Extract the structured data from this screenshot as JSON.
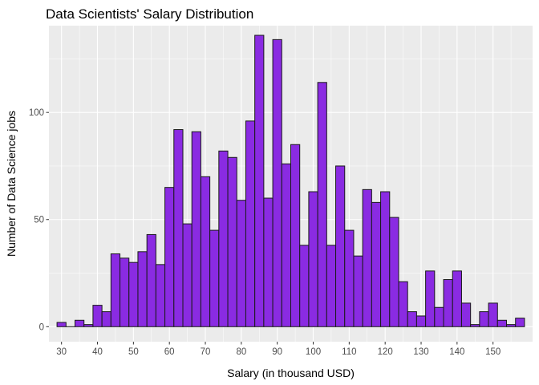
{
  "chart_data": {
    "type": "bar",
    "title": "Data Scientists' Salary Distribution",
    "xlabel": "Salary (in thousand USD)",
    "ylabel": "Number of Data Science jobs",
    "xlim": [
      26.5,
      161
    ],
    "ylim": [
      -7,
      140.5
    ],
    "bin_width": 2.5,
    "x_ticks": [
      30,
      40,
      50,
      60,
      70,
      80,
      90,
      100,
      110,
      120,
      130,
      140,
      150
    ],
    "x_tick_labels": [
      "30",
      "40",
      "50",
      "60",
      "70",
      "80",
      "90",
      "100",
      "110",
      "120",
      "130",
      "140",
      "150"
    ],
    "y_ticks": [
      0,
      50,
      100
    ],
    "y_tick_labels": [
      "0",
      "50",
      "100"
    ],
    "grid": true,
    "colors": {
      "bar_fill": "#8a2be2",
      "bar_outline": "#1a1a1a",
      "panel_background": "#ebebeb",
      "grid": "#ffffff"
    },
    "x": [
      30,
      32.5,
      35,
      37.5,
      40,
      42.5,
      45,
      47.5,
      50,
      52.5,
      55,
      57.5,
      60,
      62.5,
      65,
      67.5,
      70,
      72.5,
      75,
      77.5,
      80,
      82.5,
      85,
      87.5,
      90,
      92.5,
      95,
      97.5,
      100,
      102.5,
      105,
      107.5,
      110,
      112.5,
      115,
      117.5,
      120,
      122.5,
      125,
      127.5,
      130,
      132.5,
      135,
      137.5,
      140,
      142.5,
      145,
      147.5,
      150,
      152.5,
      155,
      157.5
    ],
    "values": [
      2,
      0,
      3,
      1,
      10,
      7,
      34,
      32,
      30,
      35,
      43,
      29,
      65,
      92,
      48,
      91,
      70,
      45,
      82,
      79,
      59,
      96,
      136,
      60,
      134,
      76,
      85,
      38,
      63,
      114,
      38,
      75,
      45,
      33,
      64,
      58,
      63,
      51,
      21,
      7,
      5,
      26,
      9,
      22,
      26,
      11,
      1,
      7,
      11,
      3,
      1,
      4
    ]
  }
}
